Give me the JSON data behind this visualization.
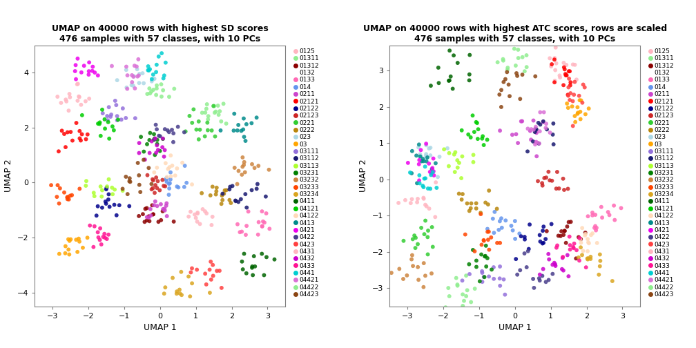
{
  "title1": "UMAP on 40000 rows with highest SD scores\n476 samples with 57 classes, with 10 PCs",
  "title2": "UMAP on 40000 rows with highest ATC scores, rows are scaled\n476 samples with 57 classes, with 10 PCs",
  "xlabel": "UMAP 1",
  "ylabel": "UMAP 2",
  "legend_labels": [
    "0125",
    "01311",
    "01312",
    "0132",
    "0133",
    "014",
    "0211",
    "02121",
    "02122",
    "02123",
    "0221",
    "0222",
    "023",
    "03",
    "03111",
    "03112",
    "03113",
    "03231",
    "03232",
    "03233",
    "03234",
    "0411",
    "04121",
    "04122",
    "0413",
    "0421",
    "0422",
    "0423",
    "0431",
    "0432",
    "0433",
    "0441",
    "04421",
    "04422",
    "04423"
  ],
  "legend_colors": [
    "#FFB6C1",
    "#90EE90",
    "#8B0000",
    "#FFFFFF",
    "#FF69B4",
    "#6495ED",
    "#CC44CC",
    "#FF0000",
    "#00008B",
    "#CD2626",
    "#32CD32",
    "#B8860B",
    "#ADD8E6",
    "#FFA500",
    "#9370DB",
    "#191970",
    "#ADFF2F",
    "#008000",
    "#CD853F",
    "#FF4500",
    "#DAA520",
    "#006400",
    "#00CD00",
    "#FFDAB9",
    "#008B8B",
    "#EE00EE",
    "#483D8B",
    "#FF4040",
    "#FFB6C1",
    "#CC00CC",
    "#FF1493",
    "#00CED1",
    "#DA70D6",
    "#90EE90",
    "#8B4513"
  ],
  "xlim1": [
    -3.5,
    3.5
  ],
  "ylim1": [
    -4.5,
    5.0
  ],
  "xticks1": [
    -3,
    -2,
    -1,
    0,
    1,
    2,
    3
  ],
  "yticks1": [
    -4,
    -2,
    0,
    2,
    4
  ],
  "xlim2": [
    -3.5,
    3.5
  ],
  "ylim2": [
    -3.5,
    3.7
  ],
  "xticks2": [
    -3,
    -2,
    -1,
    0,
    1,
    2,
    3
  ],
  "yticks2": [
    -3,
    -2,
    -1,
    0,
    1,
    2,
    3
  ],
  "point_size": 18,
  "alpha": 0.85
}
